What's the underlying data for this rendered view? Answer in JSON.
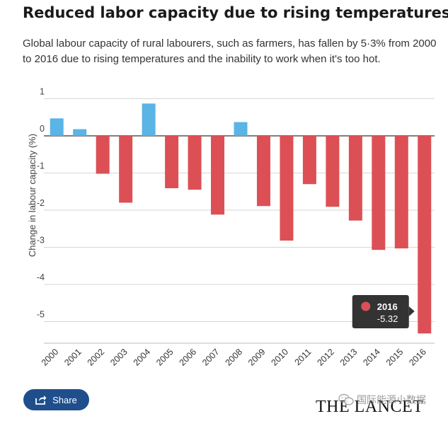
{
  "title": "Reduced labor capacity due to rising temperatures",
  "subtitle": "Global labour capacity of rural labourers, such as farmers, has fallen by 5·3% from 2000 to 2016 due to rising temperatures and the inability to work when it's too hot.",
  "share_label": "Share",
  "watermark_text": "国际能源小数据",
  "publisher": "THE LANCET",
  "colors": {
    "positive": "#5ab4e5",
    "negative": "#dc5055",
    "tooltip_bg": "#333333"
  },
  "tooltip": {
    "year": "2016",
    "value": "-5.32"
  },
  "chart_data": {
    "type": "bar",
    "title": "Reduced labor capacity due to rising temperatures",
    "xlabel": "",
    "ylabel": "Change in labour capacity (%)",
    "ylim": [
      -5.5,
      1
    ],
    "yticks": [
      1,
      0,
      -1,
      -2,
      -3,
      -4,
      -5
    ],
    "grid": true,
    "categories": [
      "2000",
      "2001",
      "2002",
      "2003",
      "2004",
      "2005",
      "2006",
      "2007",
      "2008",
      "2009",
      "2010",
      "2011",
      "2012",
      "2013",
      "2014",
      "2015",
      "2016"
    ],
    "values": [
      0.47,
      0.18,
      -1.02,
      -1.8,
      0.87,
      -1.41,
      -1.45,
      -2.12,
      0.37,
      -1.89,
      -2.82,
      -1.3,
      -1.91,
      -2.28,
      -3.07,
      -3.03,
      -5.32
    ]
  }
}
